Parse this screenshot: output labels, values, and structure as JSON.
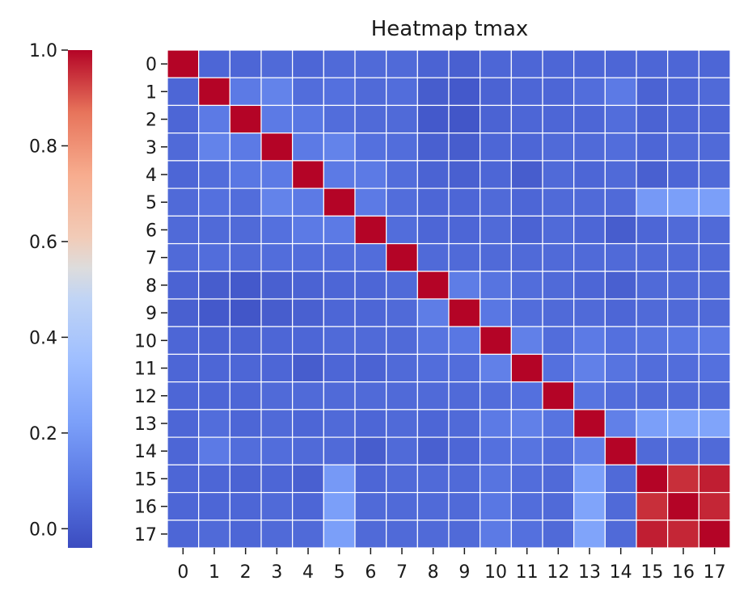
{
  "chart_data": {
    "type": "heatmap",
    "title": "Heatmap tmax",
    "xlabel": "",
    "ylabel": "",
    "colormap": "coolwarm",
    "vmin": -0.04,
    "vmax": 1.0,
    "colorbar": {
      "ticks": [
        1.0,
        0.8,
        0.6,
        0.4,
        0.2,
        0.0
      ],
      "labels": [
        "1.0",
        "0.8",
        "0.6",
        "0.4",
        "0.2",
        "0.0"
      ],
      "placement": "left"
    },
    "x_labels": [
      "0",
      "1",
      "2",
      "3",
      "4",
      "5",
      "6",
      "7",
      "8",
      "9",
      "10",
      "11",
      "12",
      "13",
      "14",
      "15",
      "16",
      "17"
    ],
    "y_labels": [
      "0",
      "1",
      "2",
      "3",
      "4",
      "5",
      "6",
      "7",
      "8",
      "9",
      "10",
      "11",
      "12",
      "13",
      "14",
      "15",
      "16",
      "17"
    ],
    "grid_color": "#ffffff",
    "values": [
      [
        1.0,
        0.04,
        0.04,
        0.05,
        0.04,
        0.05,
        0.05,
        0.05,
        0.03,
        0.02,
        0.04,
        0.04,
        0.04,
        0.04,
        0.04,
        0.04,
        0.04,
        0.04
      ],
      [
        0.04,
        1.0,
        0.1,
        0.13,
        0.06,
        0.07,
        0.05,
        0.06,
        0.01,
        0.0,
        0.03,
        0.04,
        0.04,
        0.06,
        0.1,
        0.03,
        0.04,
        0.05
      ],
      [
        0.04,
        0.1,
        1.0,
        0.1,
        0.09,
        0.06,
        0.05,
        0.05,
        0.0,
        -0.01,
        0.03,
        0.04,
        0.04,
        0.04,
        0.06,
        0.03,
        0.04,
        0.04
      ],
      [
        0.05,
        0.13,
        0.1,
        1.0,
        0.1,
        0.13,
        0.07,
        0.06,
        0.02,
        0.01,
        0.04,
        0.04,
        0.05,
        0.05,
        0.06,
        0.04,
        0.05,
        0.05
      ],
      [
        0.04,
        0.06,
        0.09,
        0.1,
        1.0,
        0.1,
        0.1,
        0.06,
        0.03,
        0.02,
        0.04,
        0.01,
        0.05,
        0.04,
        0.05,
        0.02,
        0.04,
        0.05
      ],
      [
        0.05,
        0.07,
        0.06,
        0.13,
        0.1,
        1.0,
        0.1,
        0.06,
        0.04,
        0.04,
        0.05,
        0.04,
        0.05,
        0.05,
        0.05,
        0.2,
        0.22,
        0.22
      ],
      [
        0.05,
        0.05,
        0.05,
        0.07,
        0.1,
        0.1,
        1.0,
        0.06,
        0.04,
        0.04,
        0.05,
        0.03,
        0.05,
        0.04,
        0.01,
        0.04,
        0.05,
        0.05
      ],
      [
        0.05,
        0.06,
        0.05,
        0.06,
        0.06,
        0.06,
        0.06,
        1.0,
        0.05,
        0.05,
        0.05,
        0.05,
        0.05,
        0.05,
        0.05,
        0.05,
        0.05,
        0.05
      ],
      [
        0.03,
        0.01,
        0.0,
        0.02,
        0.03,
        0.04,
        0.04,
        0.05,
        1.0,
        0.11,
        0.08,
        0.06,
        0.05,
        0.04,
        0.02,
        0.05,
        0.05,
        0.05
      ],
      [
        0.02,
        0.0,
        -0.01,
        0.01,
        0.02,
        0.04,
        0.04,
        0.05,
        0.11,
        1.0,
        0.09,
        0.06,
        0.05,
        0.05,
        0.04,
        0.05,
        0.05,
        0.05
      ],
      [
        0.04,
        0.03,
        0.03,
        0.04,
        0.04,
        0.05,
        0.05,
        0.05,
        0.08,
        0.09,
        1.0,
        0.12,
        0.06,
        0.1,
        0.07,
        0.08,
        0.09,
        0.1
      ],
      [
        0.04,
        0.04,
        0.04,
        0.04,
        0.01,
        0.04,
        0.03,
        0.05,
        0.06,
        0.06,
        0.12,
        1.0,
        0.07,
        0.12,
        0.08,
        0.06,
        0.06,
        0.07
      ],
      [
        0.04,
        0.04,
        0.04,
        0.05,
        0.05,
        0.05,
        0.05,
        0.05,
        0.05,
        0.05,
        0.06,
        0.07,
        1.0,
        0.08,
        0.06,
        0.05,
        0.05,
        0.05
      ],
      [
        0.04,
        0.06,
        0.04,
        0.05,
        0.04,
        0.05,
        0.04,
        0.05,
        0.04,
        0.05,
        0.1,
        0.12,
        0.08,
        1.0,
        0.12,
        0.22,
        0.24,
        0.24
      ],
      [
        0.04,
        0.1,
        0.06,
        0.06,
        0.05,
        0.05,
        0.01,
        0.05,
        0.02,
        0.04,
        0.07,
        0.08,
        0.06,
        0.12,
        1.0,
        0.05,
        0.05,
        0.05
      ],
      [
        0.04,
        0.04,
        0.03,
        0.04,
        0.02,
        0.2,
        0.04,
        0.05,
        0.05,
        0.05,
        0.08,
        0.06,
        0.05,
        0.22,
        0.05,
        1.0,
        0.95,
        0.97
      ],
      [
        0.04,
        0.04,
        0.04,
        0.05,
        0.04,
        0.22,
        0.05,
        0.05,
        0.05,
        0.05,
        0.09,
        0.06,
        0.05,
        0.24,
        0.05,
        0.95,
        1.0,
        0.96
      ],
      [
        0.04,
        0.05,
        0.04,
        0.05,
        0.05,
        0.22,
        0.05,
        0.05,
        0.05,
        0.05,
        0.1,
        0.07,
        0.05,
        0.24,
        0.05,
        0.97,
        0.96,
        1.0
      ]
    ]
  }
}
